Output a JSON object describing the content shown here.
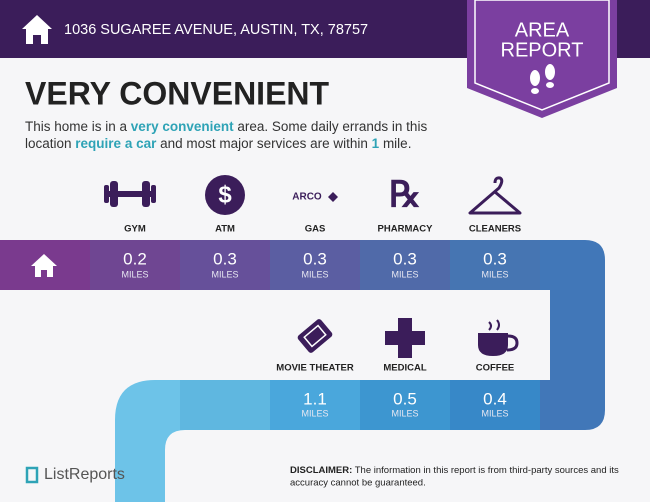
{
  "header": {
    "address": "1036 SUGAREE AVENUE, AUSTIN, TX, 78757"
  },
  "badge": {
    "lines": [
      "AREA",
      "REPORT"
    ]
  },
  "headline": "VERY CONVENIENT",
  "description": {
    "lines": [
      [
        "This home is in a ",
        "very convenient",
        " area. Some daily errands in this"
      ],
      [
        "location ",
        "require a car",
        " and most major services are within ",
        "1",
        " mile."
      ]
    ]
  },
  "distance_unit": "MILES",
  "amenities_row1": [
    {
      "label": "GYM",
      "distance": "0.2"
    },
    {
      "label": "ATM",
      "distance": "0.3"
    },
    {
      "label": "GAS",
      "icon_text": "ARCO",
      "distance": "0.3"
    },
    {
      "label": "PHARMACY",
      "distance": "0.3"
    },
    {
      "label": "CLEANERS",
      "distance": "0.3"
    }
  ],
  "amenities_row2": [
    {
      "label": "MOVIE THEATER",
      "distance": "1.1"
    },
    {
      "label": "MEDICAL",
      "distance": "0.5"
    },
    {
      "label": "COFFEE",
      "distance": "0.4"
    }
  ],
  "footer": {
    "brand": "ListReports",
    "disclaimer_label": "DISCLAIMER:",
    "disclaimer_lines": [
      " The information in this report is from third-party sources and its",
      "accuracy cannot be guaranteed."
    ]
  }
}
